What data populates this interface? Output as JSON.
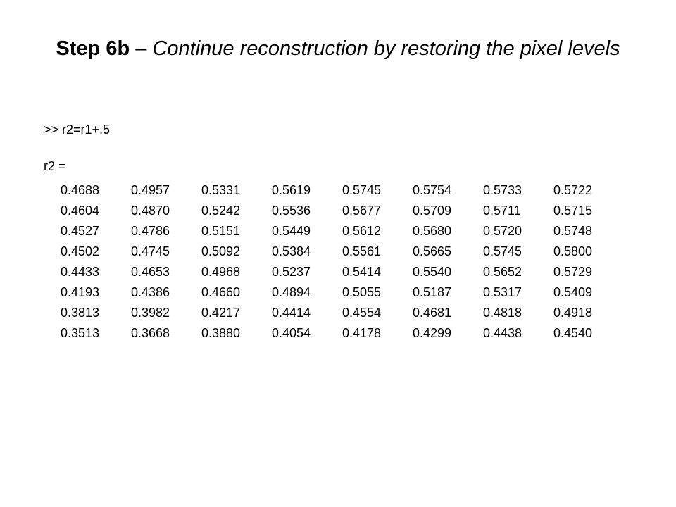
{
  "title": {
    "bold": "Step 6b",
    "dash": "–",
    "italic": "Continue reconstruction by restoring the pixel levels"
  },
  "command": ">> r2=r1+.5",
  "result_label": "r2 =",
  "table": {
    "rows": [
      [
        "0.4688",
        "0.4957",
        "0.5331",
        "0.5619",
        "0.5745",
        "0.5754",
        "0.5733",
        "0.5722"
      ],
      [
        "0.4604",
        "0.4870",
        "0.5242",
        "0.5536",
        "0.5677",
        "0.5709",
        "0.5711",
        "0.5715"
      ],
      [
        "0.4527",
        "0.4786",
        "0.5151",
        "0.5449",
        "0.5612",
        "0.5680",
        "0.5720",
        "0.5748"
      ],
      [
        "0.4502",
        "0.4745",
        "0.5092",
        "0.5384",
        "0.5561",
        "0.5665",
        "0.5745",
        "0.5800"
      ],
      [
        "0.4433",
        "0.4653",
        "0.4968",
        "0.5237",
        "0.5414",
        "0.5540",
        "0.5652",
        "0.5729"
      ],
      [
        "0.4193",
        "0.4386",
        "0.4660",
        "0.4894",
        "0.5055",
        "0.5187",
        "0.5317",
        "0.5409"
      ],
      [
        "0.3813",
        "0.3982",
        "0.4217",
        "0.4414",
        "0.4554",
        "0.4681",
        "0.4818",
        "0.4918"
      ],
      [
        "0.3513",
        "0.3668",
        "0.3880",
        "0.4054",
        "0.4178",
        "0.4299",
        "0.4438",
        "0.4540"
      ]
    ]
  }
}
